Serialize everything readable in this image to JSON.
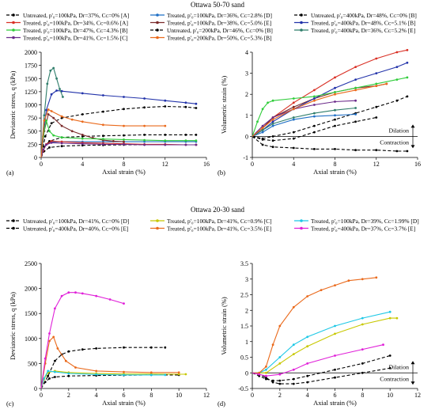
{
  "figure": {
    "section_top_title": "Ottawa 50-70 sand",
    "section_bottom_title": "Ottawa 20-30 sand"
  },
  "legend_top": [
    {
      "label": "Untreated, p'₀=100kPa, Dr=37%, Cᴄ=0% [A]",
      "color": "#000000",
      "dashed": true
    },
    {
      "label": "Treated, p'₀=100kPa, Dr=36%, Cᴄ=2.8% [D]",
      "color": "#1f6fc5",
      "dashed": false
    },
    {
      "label": "Untreated, p'₀=400kPa, Dr=48%, Cᴄ=0% [B]",
      "color": "#000000",
      "dashed": true
    },
    {
      "label": "Treated, p'₀=100kPa, Dr=34%, Cᴄ=0.6% [A]",
      "color": "#d93025",
      "dashed": false
    },
    {
      "label": "Treated, p'₀=100kPa, Dr=38%, Cᴄ=5.0% [E]",
      "color": "#7a2a2a",
      "dashed": false
    },
    {
      "label": "Treated, p'₀=400kPa, Dr=48%, Cᴄ=5.1% [B]",
      "color": "#2233aa",
      "dashed": false
    },
    {
      "label": "Treated, p'₀=100kPa, Dr=47%, Cᴄ=4.3% [B]",
      "color": "#2fcc3a",
      "dashed": false
    },
    {
      "label": "Untreated, p'₀=200kPa, Dr=46%, Cᴄ=0% [B]",
      "color": "#000000",
      "dashed": true
    },
    {
      "label": "Treated, p'₀=400kPa, Dr=36%, Cᴄ=5.2% [E]",
      "color": "#2e7d6a",
      "dashed": false
    },
    {
      "label": "Treated, p'₀=100kPa, Dr=41%, Cᴄ=1.5% [C]",
      "color": "#6b2a8a",
      "dashed": false
    },
    {
      "label": "Treated, p'₀=200kPa, Dr=50%, Cᴄ=5.3% [B]",
      "color": "#ea6a1c",
      "dashed": false
    }
  ],
  "legend_bottom": [
    {
      "label": "Untreated, p'₀=100kPa, Dr=41%, Cᴄ=0% [D]",
      "color": "#000000",
      "dashed": true
    },
    {
      "label": "Treated, p'₀=100kPa, Dr=41%, Cᴄ=0.9% [C]",
      "color": "#c8c800",
      "dashed": false
    },
    {
      "label": "Treated, p'₀=100kPa, Dr=39%, Cᴄ=1.99% [D]",
      "color": "#1ec8e6",
      "dashed": false
    },
    {
      "label": "Untreated, p'₀=400kPa, Dr=40%, Cᴄ=0% [E]",
      "color": "#000000",
      "dashed": true
    },
    {
      "label": "Treated, p'₀=100kPa, Dr=41%, Cᴄ=3.5% [E]",
      "color": "#ea6a1c",
      "dashed": false
    },
    {
      "label": "Treated, p'₀=400kPa, Dr=37%, Cᴄ=3.7% [E]",
      "color": "#e020d8",
      "dashed": false
    }
  ],
  "chart_data": [
    {
      "panel": "(a)",
      "type": "line",
      "xlabel": "Axial strain (%)",
      "ylabel": "Deviatoric stress, q (kPa)",
      "xlim": [
        0,
        16
      ],
      "ylim": [
        0,
        2000
      ],
      "xticks": [
        0,
        4,
        8,
        12,
        16
      ],
      "yticks": [
        0,
        250,
        500,
        750,
        1000,
        1250,
        1500,
        1750,
        2000
      ],
      "series": [
        {
          "color": "#000000",
          "dashed": true,
          "x": [
            0,
            0.3,
            0.8,
            2,
            4,
            6,
            8,
            10,
            12,
            14,
            15
          ],
          "y": [
            0,
            120,
            190,
            215,
            230,
            235,
            240,
            240,
            240,
            240,
            240
          ]
        },
        {
          "color": "#000000",
          "dashed": true,
          "x": [
            0,
            0.3,
            0.8,
            2,
            4,
            6,
            8,
            10,
            12,
            14,
            15
          ],
          "y": [
            0,
            200,
            310,
            380,
            400,
            410,
            420,
            430,
            430,
            430,
            430
          ]
        },
        {
          "color": "#000000",
          "dashed": true,
          "x": [
            0,
            0.4,
            1,
            2,
            4,
            6,
            8,
            10,
            12,
            14,
            15
          ],
          "y": [
            0,
            400,
            650,
            750,
            820,
            870,
            920,
            950,
            970,
            960,
            940
          ]
        },
        {
          "color": "#1f6fc5",
          "x": [
            0,
            0.2,
            0.5,
            1,
            2,
            4,
            6,
            8,
            10,
            12,
            14,
            15
          ],
          "y": [
            0,
            140,
            250,
            290,
            300,
            300,
            300,
            300,
            300,
            300,
            300,
            300
          ]
        },
        {
          "color": "#d93025",
          "x": [
            0,
            0.2,
            0.5,
            1,
            2,
            4,
            6,
            8,
            10,
            12,
            14,
            15
          ],
          "y": [
            0,
            130,
            250,
            310,
            300,
            280,
            270,
            260,
            250,
            250,
            240,
            240
          ]
        },
        {
          "color": "#7a2a2a",
          "x": [
            0,
            0.3,
            0.7,
            1.2,
            2,
            3,
            4,
            5,
            6,
            7,
            8
          ],
          "y": [
            0,
            500,
            820,
            750,
            600,
            500,
            430,
            370,
            330,
            310,
            300
          ]
        },
        {
          "color": "#2233aa",
          "x": [
            0,
            0.5,
            1,
            1.5,
            2,
            4,
            6,
            8,
            10,
            12,
            14,
            15
          ],
          "y": [
            0,
            900,
            1200,
            1270,
            1260,
            1220,
            1180,
            1150,
            1120,
            1080,
            1040,
            1020
          ]
        },
        {
          "color": "#2fcc3a",
          "x": [
            0,
            0.2,
            0.5,
            0.8,
            1.2,
            2,
            4,
            6,
            8,
            10,
            12,
            14,
            15
          ],
          "y": [
            0,
            400,
            700,
            500,
            420,
            380,
            360,
            350,
            340,
            330,
            320,
            320,
            320
          ]
        },
        {
          "color": "#2e7d6a",
          "x": [
            0,
            0.3,
            0.6,
            0.9,
            1.2,
            1.5,
            1.8,
            2.1
          ],
          "y": [
            0,
            800,
            1400,
            1650,
            1700,
            1500,
            1300,
            1150
          ]
        },
        {
          "color": "#6b2a8a",
          "x": [
            0,
            0.2,
            0.5,
            1,
            2,
            4,
            6,
            8,
            10,
            12,
            14,
            15
          ],
          "y": [
            0,
            150,
            240,
            280,
            270,
            260,
            250,
            250,
            240,
            240,
            240,
            240
          ]
        },
        {
          "color": "#ea6a1c",
          "x": [
            0,
            0.3,
            0.7,
            1,
            2,
            3,
            4,
            6,
            8,
            10,
            12
          ],
          "y": [
            0,
            700,
            910,
            880,
            780,
            720,
            680,
            620,
            600,
            600,
            600
          ]
        }
      ]
    },
    {
      "panel": "(b)",
      "type": "line",
      "xlabel": "Axial strain (%)",
      "ylabel": "Volumetric strain (%)",
      "xlim": [
        0,
        16
      ],
      "ylim": [
        -1,
        4
      ],
      "xticks": [
        0,
        4,
        8,
        12,
        16
      ],
      "yticks": [
        -1,
        0,
        1,
        2,
        3,
        4
      ],
      "annotations": [
        "Dilation",
        "Contraction"
      ],
      "series": [
        {
          "color": "#000000",
          "dashed": true,
          "x": [
            0,
            1,
            2,
            4,
            6,
            8,
            10,
            12,
            14,
            15
          ],
          "y": [
            0,
            -0.4,
            -0.5,
            -0.55,
            -0.6,
            -0.6,
            -0.65,
            -0.65,
            -0.7,
            -0.7
          ]
        },
        {
          "color": "#000000",
          "dashed": true,
          "x": [
            0,
            1,
            2,
            4,
            6,
            8,
            10,
            12,
            14,
            15
          ],
          "y": [
            0,
            -0.1,
            0,
            0.2,
            0.5,
            0.8,
            1.1,
            1.4,
            1.7,
            1.9
          ]
        },
        {
          "color": "#000000",
          "dashed": true,
          "x": [
            0,
            1,
            2,
            4,
            6,
            8,
            10,
            12
          ],
          "y": [
            0,
            -0.15,
            -0.2,
            -0.1,
            0.2,
            0.5,
            0.7,
            0.9
          ]
        },
        {
          "color": "#1f6fc5",
          "x": [
            0,
            1,
            2,
            4,
            6,
            8,
            10
          ],
          "y": [
            0,
            0.2,
            0.5,
            0.8,
            0.95,
            1.0,
            1.05
          ]
        },
        {
          "color": "#d93025",
          "x": [
            0,
            1,
            2,
            4,
            6,
            8,
            10,
            12,
            14,
            15
          ],
          "y": [
            0,
            0.4,
            0.9,
            1.6,
            2.2,
            2.8,
            3.3,
            3.7,
            4.0,
            4.1
          ]
        },
        {
          "color": "#7a2a2a",
          "x": [
            0,
            1,
            2,
            4,
            6,
            8,
            10,
            12,
            13
          ],
          "y": [
            0,
            0.4,
            0.9,
            1.4,
            1.8,
            2.1,
            2.3,
            2.4,
            2.5
          ]
        },
        {
          "color": "#2233aa",
          "x": [
            0,
            1,
            2,
            4,
            6,
            8,
            10,
            12,
            14,
            15
          ],
          "y": [
            0,
            0.3,
            0.7,
            1.3,
            1.8,
            2.3,
            2.7,
            3.0,
            3.3,
            3.5
          ]
        },
        {
          "color": "#2fcc3a",
          "x": [
            0,
            0.5,
            1,
            1.5,
            2,
            4,
            6,
            8,
            10,
            12,
            14,
            15
          ],
          "y": [
            0,
            0.7,
            1.3,
            1.6,
            1.7,
            1.8,
            1.9,
            2.1,
            2.3,
            2.5,
            2.7,
            2.8
          ]
        },
        {
          "color": "#2e7d6a",
          "x": [
            0,
            1,
            2,
            4,
            6,
            8,
            10
          ],
          "y": [
            0,
            0.3,
            0.6,
            0.9,
            1.1,
            1.25,
            1.35
          ]
        },
        {
          "color": "#6b2a8a",
          "x": [
            0,
            1,
            2,
            4,
            6,
            8,
            10
          ],
          "y": [
            0,
            0.5,
            0.9,
            1.3,
            1.5,
            1.65,
            1.7
          ]
        },
        {
          "color": "#ea6a1c",
          "x": [
            0,
            1,
            2,
            4,
            6,
            8,
            10,
            12,
            13
          ],
          "y": [
            0,
            0.4,
            0.8,
            1.3,
            1.7,
            2.0,
            2.2,
            2.4,
            2.5
          ]
        }
      ]
    },
    {
      "panel": "(c)",
      "type": "line",
      "xlabel": "Axial strain (%)",
      "ylabel": "Deviatoric stress, q (kPa)",
      "xlim": [
        0,
        12
      ],
      "ylim": [
        0,
        2500
      ],
      "xticks": [
        0,
        2,
        4,
        6,
        8,
        10,
        12
      ],
      "yticks": [
        0,
        500,
        1000,
        1500,
        2000,
        2500
      ],
      "series": [
        {
          "color": "#000000",
          "dashed": true,
          "x": [
            0,
            0.3,
            0.6,
            1,
            2,
            4,
            6,
            8,
            10
          ],
          "y": [
            0,
            130,
            200,
            230,
            250,
            260,
            265,
            270,
            270
          ]
        },
        {
          "color": "#000000",
          "dashed": true,
          "x": [
            0,
            0.5,
            1,
            1.5,
            2,
            3,
            4,
            6,
            8,
            9
          ],
          "y": [
            0,
            250,
            550,
            680,
            740,
            780,
            800,
            820,
            820,
            820
          ]
        },
        {
          "color": "#c8c800",
          "x": [
            0,
            0.2,
            0.5,
            1,
            2,
            4,
            6,
            8,
            10,
            10.5
          ],
          "y": [
            0,
            180,
            320,
            350,
            320,
            300,
            290,
            290,
            285,
            285
          ]
        },
        {
          "color": "#1ec8e6",
          "x": [
            0,
            0.2,
            0.5,
            1,
            2,
            4,
            6,
            8,
            9
          ],
          "y": [
            0,
            200,
            350,
            330,
            300,
            280,
            270,
            270,
            270
          ]
        },
        {
          "color": "#ea6a1c",
          "x": [
            0,
            0.3,
            0.6,
            0.9,
            1.2,
            1.8,
            2.5,
            4,
            6,
            8,
            10
          ],
          "y": [
            0,
            500,
            950,
            1030,
            800,
            550,
            420,
            350,
            330,
            320,
            320
          ]
        },
        {
          "color": "#e020d8",
          "x": [
            0,
            0.3,
            0.6,
            1,
            1.5,
            2,
            2.5,
            3,
            4,
            5,
            6
          ],
          "y": [
            0,
            600,
            1100,
            1600,
            1850,
            1920,
            1920,
            1900,
            1850,
            1780,
            1700
          ]
        }
      ]
    },
    {
      "panel": "(d)",
      "type": "line",
      "xlabel": "Axial strain (%)",
      "ylabel": "Volumetric strain (%)",
      "xlim": [
        0,
        12
      ],
      "ylim": [
        -0.5,
        3.5
      ],
      "xticks": [
        0,
        2,
        4,
        6,
        8,
        10,
        12
      ],
      "yticks": [
        -0.5,
        0,
        0.5,
        1,
        1.5,
        2,
        2.5,
        3,
        3.5
      ],
      "annotations": [
        "Dilation",
        "Contraction"
      ],
      "series": [
        {
          "color": "#000000",
          "dashed": true,
          "x": [
            0,
            0.5,
            1,
            1.5,
            2,
            3,
            4,
            6,
            8,
            10
          ],
          "y": [
            0,
            -0.1,
            -0.2,
            -0.25,
            -0.25,
            -0.2,
            -0.1,
            0.1,
            0.3,
            0.55
          ]
        },
        {
          "color": "#000000",
          "dashed": true,
          "x": [
            0,
            0.5,
            1,
            1.5,
            2,
            3,
            4,
            6,
            8,
            10
          ],
          "y": [
            0,
            -0.05,
            -0.15,
            -0.3,
            -0.35,
            -0.35,
            -0.3,
            -0.15,
            0,
            0.15
          ]
        },
        {
          "color": "#c8c800",
          "x": [
            0,
            0.5,
            1,
            2,
            3,
            4,
            6,
            8,
            10,
            10.5
          ],
          "y": [
            0,
            0,
            0,
            0.3,
            0.6,
            0.85,
            1.25,
            1.55,
            1.75,
            1.75
          ]
        },
        {
          "color": "#1ec8e6",
          "x": [
            0,
            0.5,
            1,
            2,
            3,
            4,
            6,
            8,
            10
          ],
          "y": [
            0,
            0,
            0.1,
            0.5,
            0.9,
            1.15,
            1.5,
            1.75,
            1.95
          ]
        },
        {
          "color": "#ea6a1c",
          "x": [
            0,
            0.5,
            1,
            1.5,
            2,
            3,
            4,
            5,
            6,
            7,
            8,
            9
          ],
          "y": [
            0,
            0,
            0.2,
            0.9,
            1.5,
            2.1,
            2.45,
            2.65,
            2.8,
            2.95,
            3.0,
            3.05
          ]
        },
        {
          "color": "#e020d8",
          "x": [
            0,
            0.5,
            1,
            2,
            3,
            4,
            6,
            8,
            9.5
          ],
          "y": [
            0,
            -0.05,
            -0.1,
            -0.05,
            0.1,
            0.3,
            0.55,
            0.75,
            0.9
          ]
        }
      ]
    }
  ]
}
